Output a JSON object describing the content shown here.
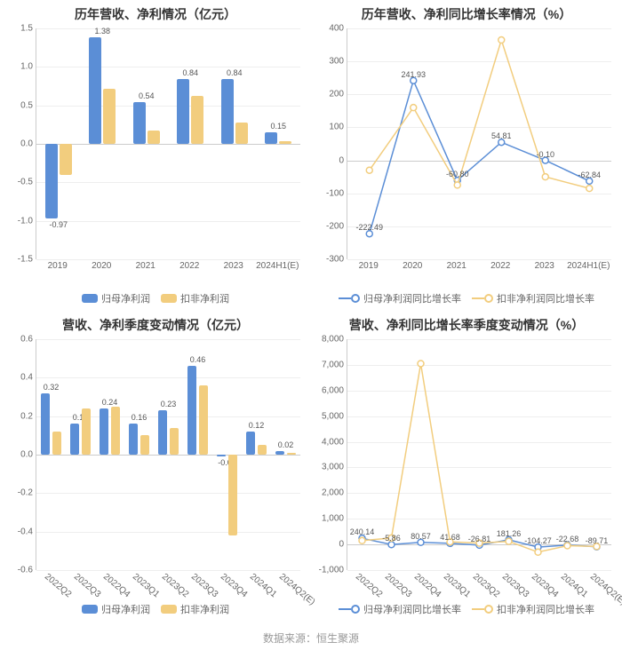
{
  "colors": {
    "series_a": "#5b8ed6",
    "series_b": "#f2cd7e",
    "grid": "#eeeeee",
    "axis": "#cccccc",
    "bg": "#ffffff",
    "text": "#666666"
  },
  "footer": "数据来源：恒生聚源",
  "panels": {
    "tl": {
      "title": "历年营收、净利情况（亿元）",
      "type": "bar",
      "ylim": [
        -1.5,
        1.5
      ],
      "ytick_step": 0.5,
      "categories": [
        "2019",
        "2020",
        "2021",
        "2022",
        "2023",
        "2024H1(E)"
      ],
      "series": [
        {
          "name": "归母净利润",
          "color": "#5b8ed6",
          "values": [
            -0.97,
            1.38,
            0.54,
            0.84,
            0.84,
            0.15
          ],
          "labels": [
            "-0.97",
            "1.38",
            "0.54",
            "0.84",
            "0.84",
            "0.15"
          ]
        },
        {
          "name": "扣非净利润",
          "color": "#f2cd7e",
          "values": [
            -0.4,
            0.72,
            0.17,
            0.62,
            0.28,
            0.04
          ],
          "labels": [
            "",
            "",
            "",
            "",
            "",
            ""
          ]
        }
      ],
      "legend": [
        {
          "text": "归母净利润",
          "color": "#5b8ed6"
        },
        {
          "text": "扣非净利润",
          "color": "#f2cd7e"
        }
      ]
    },
    "tr": {
      "title": "历年营收、净利同比增长率情况（%）",
      "type": "line",
      "ylim": [
        -300,
        400
      ],
      "ytick_step": 100,
      "categories": [
        "2019",
        "2020",
        "2021",
        "2022",
        "2023",
        "2024H1(E)"
      ],
      "series": [
        {
          "name": "归母净利润同比增长率",
          "color": "#5b8ed6",
          "values": [
            -222.49,
            241.93,
            -60.8,
            54.81,
            -0.1,
            -62.84
          ],
          "labels": [
            "-222.49",
            "241.93",
            "-60.80",
            "54.81",
            "-0.10",
            "-62.84"
          ]
        },
        {
          "name": "扣非净利润同比增长率",
          "color": "#f2cd7e",
          "values": [
            -30,
            160,
            -75,
            365,
            -50,
            -85
          ],
          "labels": [
            "",
            "",
            "",
            "",
            "",
            ""
          ]
        }
      ],
      "legend": [
        {
          "text": "归母净利润同比增长率",
          "color": "#5b8ed6"
        },
        {
          "text": "扣非净利润同比增长率",
          "color": "#f2cd7e"
        }
      ]
    },
    "bl": {
      "title": "营收、净利季度变动情况（亿元）",
      "type": "bar",
      "ylim": [
        -0.6,
        0.6
      ],
      "ytick_step": 0.2,
      "categories": [
        "2022Q2",
        "2022Q3",
        "2022Q4",
        "2023Q1",
        "2023Q2",
        "2023Q3",
        "2023Q4",
        "2024Q1",
        "2024Q2(E)"
      ],
      "rotate_x": true,
      "series": [
        {
          "name": "归母净利润",
          "color": "#5b8ed6",
          "values": [
            0.32,
            0.16,
            0.24,
            0.16,
            0.23,
            0.46,
            -0.01,
            0.12,
            0.02
          ],
          "labels": [
            "0.32",
            "0.16",
            "0.24",
            "0.16",
            "0.23",
            "0.46",
            "-0.01",
            "0.12",
            "0.02"
          ]
        },
        {
          "name": "扣非净利润",
          "color": "#f2cd7e",
          "values": [
            0.12,
            0.24,
            0.25,
            0.1,
            0.14,
            0.36,
            -0.42,
            0.05,
            0.01
          ],
          "labels": [
            "",
            "",
            "",
            "",
            "",
            "",
            "",
            "",
            ""
          ]
        }
      ],
      "legend": [
        {
          "text": "归母净利润",
          "color": "#5b8ed6"
        },
        {
          "text": "扣非净利润",
          "color": "#f2cd7e"
        }
      ]
    },
    "br": {
      "title": "营收、净利同比增长率季度变动情况（%）",
      "type": "line",
      "ylim": [
        -1000,
        8000
      ],
      "ytick_step": 1000,
      "categories": [
        "2022Q2",
        "2022Q3",
        "2022Q4",
        "2023Q1",
        "2023Q2",
        "2023Q3",
        "2023Q4",
        "2024Q1",
        "2024Q2(E)"
      ],
      "rotate_x": true,
      "series": [
        {
          "name": "归母净利润同比增长率",
          "color": "#5b8ed6",
          "values": [
            240.14,
            -5.86,
            80.57,
            41.68,
            -26.81,
            181.26,
            -104.27,
            -22.68,
            -89.71
          ],
          "labels": [
            "240.14",
            "-5.86",
            "80.57",
            "41.68",
            "-26.81",
            "181.26",
            "-104.27",
            "-22.68",
            "-89.71"
          ]
        },
        {
          "name": "扣非净利润同比增长率",
          "color": "#f2cd7e",
          "values": [
            150,
            250,
            7050,
            100,
            50,
            120,
            -300,
            -50,
            -80
          ],
          "labels": [
            "",
            "",
            "",
            "",
            "",
            "",
            "",
            "",
            ""
          ]
        }
      ],
      "legend": [
        {
          "text": "归母净利润同比增长率",
          "color": "#5b8ed6"
        },
        {
          "text": "扣非净利润同比增长率",
          "color": "#f2cd7e"
        }
      ]
    }
  }
}
